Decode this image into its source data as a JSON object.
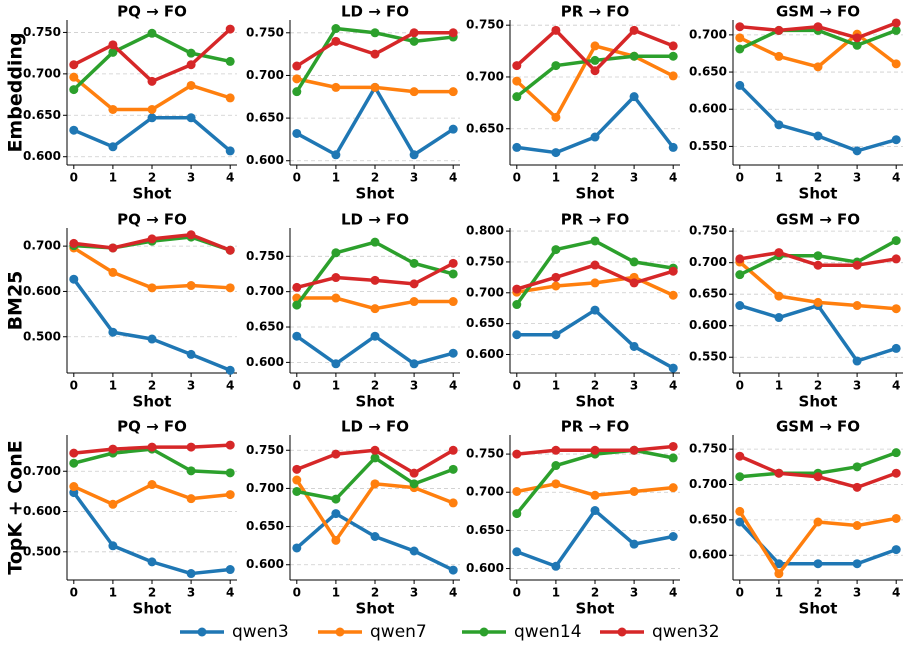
{
  "chart_data": [
    {
      "type": "line",
      "title": "PQ → FO",
      "ylabel": "Embedding",
      "xlabel": "Shot",
      "categories": [
        "0",
        "1",
        "2",
        "3",
        "4"
      ],
      "ylim": [
        0.59,
        0.765
      ],
      "yticks": [
        {
          "value": 0.6,
          "label": "0.600"
        },
        {
          "value": 0.65,
          "label": "0.650"
        },
        {
          "value": 0.7,
          "label": "0.700"
        },
        {
          "value": 0.75,
          "label": "0.750"
        }
      ],
      "grid": true,
      "legend": "bottom",
      "series": [
        {
          "name": "qwen3",
          "color": "#1f77b4",
          "values": [
            0.632,
            0.612,
            0.647,
            0.647,
            0.607
          ]
        },
        {
          "name": "qwen7",
          "color": "#ff7f0e",
          "values": [
            0.696,
            0.657,
            0.657,
            0.686,
            0.671
          ]
        },
        {
          "name": "qwen14",
          "color": "#2ca02c",
          "values": [
            0.681,
            0.726,
            0.749,
            0.725,
            0.715
          ]
        },
        {
          "name": "qwen32",
          "color": "#d62728",
          "values": [
            0.711,
            0.735,
            0.691,
            0.711,
            0.754
          ]
        }
      ]
    },
    {
      "type": "line",
      "title": "LD → FO",
      "xlabel": "Shot",
      "categories": [
        "0",
        "1",
        "2",
        "3",
        "4"
      ],
      "ylim": [
        0.595,
        0.765
      ],
      "yticks": [
        {
          "value": 0.6,
          "label": "0.600"
        },
        {
          "value": 0.65,
          "label": "0.650"
        },
        {
          "value": 0.7,
          "label": "0.700"
        },
        {
          "value": 0.75,
          "label": "0.750"
        }
      ],
      "grid": true,
      "series": [
        {
          "name": "qwen3",
          "color": "#1f77b4",
          "values": [
            0.632,
            0.607,
            0.686,
            0.607,
            0.637
          ]
        },
        {
          "name": "qwen7",
          "color": "#ff7f0e",
          "values": [
            0.696,
            0.686,
            0.686,
            0.681,
            0.681
          ]
        },
        {
          "name": "qwen14",
          "color": "#2ca02c",
          "values": [
            0.681,
            0.755,
            0.75,
            0.74,
            0.745
          ]
        },
        {
          "name": "qwen32",
          "color": "#d62728",
          "values": [
            0.711,
            0.74,
            0.725,
            0.75,
            0.75
          ]
        }
      ]
    },
    {
      "type": "line",
      "title": "PR → FO",
      "xlabel": "Shot",
      "categories": [
        "0",
        "1",
        "2",
        "3",
        "4"
      ],
      "ylim": [
        0.615,
        0.755
      ],
      "yticks": [
        {
          "value": 0.65,
          "label": "0.650"
        },
        {
          "value": 0.7,
          "label": "0.700"
        },
        {
          "value": 0.75,
          "label": "0.750"
        }
      ],
      "grid": true,
      "series": [
        {
          "name": "qwen3",
          "color": "#1f77b4",
          "values": [
            0.632,
            0.627,
            0.642,
            0.681,
            0.632
          ]
        },
        {
          "name": "qwen7",
          "color": "#ff7f0e",
          "values": [
            0.696,
            0.661,
            0.73,
            0.72,
            0.701
          ]
        },
        {
          "name": "qwen14",
          "color": "#2ca02c",
          "values": [
            0.681,
            0.711,
            0.716,
            0.72,
            0.72
          ]
        },
        {
          "name": "qwen32",
          "color": "#d62728",
          "values": [
            0.711,
            0.745,
            0.706,
            0.745,
            0.73
          ]
        }
      ]
    },
    {
      "type": "line",
      "title": "GSM → FO",
      "xlabel": "Shot",
      "categories": [
        "0",
        "1",
        "2",
        "3",
        "4"
      ],
      "ylim": [
        0.525,
        0.72
      ],
      "yticks": [
        {
          "value": 0.55,
          "label": "0.550"
        },
        {
          "value": 0.6,
          "label": "0.600"
        },
        {
          "value": 0.65,
          "label": "0.650"
        },
        {
          "value": 0.7,
          "label": "0.700"
        }
      ],
      "grid": true,
      "series": [
        {
          "name": "qwen3",
          "color": "#1f77b4",
          "values": [
            0.632,
            0.579,
            0.564,
            0.544,
            0.559
          ]
        },
        {
          "name": "qwen7",
          "color": "#ff7f0e",
          "values": [
            0.696,
            0.671,
            0.657,
            0.701,
            0.661
          ]
        },
        {
          "name": "qwen14",
          "color": "#2ca02c",
          "values": [
            0.681,
            0.706,
            0.706,
            0.686,
            0.706
          ]
        },
        {
          "name": "qwen32",
          "color": "#d62728",
          "values": [
            0.711,
            0.706,
            0.711,
            0.696,
            0.716
          ]
        }
      ]
    },
    {
      "type": "line",
      "title": "PQ → FO",
      "ylabel": "BM25",
      "xlabel": "Shot",
      "categories": [
        "0",
        "1",
        "2",
        "3",
        "4"
      ],
      "ylim": [
        0.42,
        0.74
      ],
      "yticks": [
        {
          "value": 0.5,
          "label": "0.500"
        },
        {
          "value": 0.6,
          "label": "0.600"
        },
        {
          "value": 0.7,
          "label": "0.700"
        }
      ],
      "grid": true,
      "series": [
        {
          "name": "qwen3",
          "color": "#1f77b4",
          "values": [
            0.627,
            0.51,
            0.495,
            0.461,
            0.426
          ]
        },
        {
          "name": "qwen7",
          "color": "#ff7f0e",
          "values": [
            0.696,
            0.642,
            0.608,
            0.613,
            0.608
          ]
        },
        {
          "name": "qwen14",
          "color": "#2ca02c",
          "values": [
            0.701,
            0.696,
            0.711,
            0.72,
            0.691
          ]
        },
        {
          "name": "qwen32",
          "color": "#d62728",
          "values": [
            0.706,
            0.696,
            0.716,
            0.725,
            0.691
          ]
        }
      ]
    },
    {
      "type": "line",
      "title": "LD → FO",
      "xlabel": "Shot",
      "categories": [
        "0",
        "1",
        "2",
        "3",
        "4"
      ],
      "ylim": [
        0.585,
        0.79
      ],
      "yticks": [
        {
          "value": 0.6,
          "label": "0.600"
        },
        {
          "value": 0.65,
          "label": "0.650"
        },
        {
          "value": 0.7,
          "label": "0.700"
        },
        {
          "value": 0.75,
          "label": "0.750"
        }
      ],
      "grid": true,
      "series": [
        {
          "name": "qwen3",
          "color": "#1f77b4",
          "values": [
            0.637,
            0.598,
            0.637,
            0.598,
            0.613
          ]
        },
        {
          "name": "qwen7",
          "color": "#ff7f0e",
          "values": [
            0.691,
            0.691,
            0.676,
            0.686,
            0.686
          ]
        },
        {
          "name": "qwen14",
          "color": "#2ca02c",
          "values": [
            0.681,
            0.755,
            0.77,
            0.74,
            0.725
          ]
        },
        {
          "name": "qwen32",
          "color": "#d62728",
          "values": [
            0.706,
            0.72,
            0.716,
            0.711,
            0.74
          ]
        }
      ]
    },
    {
      "type": "line",
      "title": "PR → FO",
      "xlabel": "Shot",
      "categories": [
        "0",
        "1",
        "2",
        "3",
        "4"
      ],
      "ylim": [
        0.57,
        0.805
      ],
      "yticks": [
        {
          "value": 0.6,
          "label": "0.600"
        },
        {
          "value": 0.65,
          "label": "0.650"
        },
        {
          "value": 0.7,
          "label": "0.700"
        },
        {
          "value": 0.75,
          "label": "0.750"
        },
        {
          "value": 0.8,
          "label": "0.800"
        }
      ],
      "grid": true,
      "series": [
        {
          "name": "qwen3",
          "color": "#1f77b4",
          "values": [
            0.632,
            0.632,
            0.672,
            0.613,
            0.578
          ]
        },
        {
          "name": "qwen7",
          "color": "#ff7f0e",
          "values": [
            0.701,
            0.711,
            0.716,
            0.725,
            0.696
          ]
        },
        {
          "name": "qwen14",
          "color": "#2ca02c",
          "values": [
            0.681,
            0.77,
            0.784,
            0.75,
            0.74
          ]
        },
        {
          "name": "qwen32",
          "color": "#d62728",
          "values": [
            0.706,
            0.725,
            0.745,
            0.716,
            0.735
          ]
        }
      ]
    },
    {
      "type": "line",
      "title": "GSM → FO",
      "xlabel": "Shot",
      "categories": [
        "0",
        "1",
        "2",
        "3",
        "4"
      ],
      "ylim": [
        0.525,
        0.755
      ],
      "yticks": [
        {
          "value": 0.55,
          "label": "0.550"
        },
        {
          "value": 0.6,
          "label": "0.600"
        },
        {
          "value": 0.65,
          "label": "0.650"
        },
        {
          "value": 0.7,
          "label": "0.700"
        },
        {
          "value": 0.75,
          "label": "0.750"
        }
      ],
      "grid": true,
      "series": [
        {
          "name": "qwen3",
          "color": "#1f77b4",
          "values": [
            0.632,
            0.613,
            0.632,
            0.544,
            0.564
          ]
        },
        {
          "name": "qwen7",
          "color": "#ff7f0e",
          "values": [
            0.701,
            0.647,
            0.637,
            0.632,
            0.627
          ]
        },
        {
          "name": "qwen14",
          "color": "#2ca02c",
          "values": [
            0.681,
            0.711,
            0.711,
            0.701,
            0.735
          ]
        },
        {
          "name": "qwen32",
          "color": "#d62728",
          "values": [
            0.706,
            0.716,
            0.696,
            0.696,
            0.706
          ]
        }
      ]
    },
    {
      "type": "line",
      "title": "PQ → FO",
      "ylabel": "TopK + ConE",
      "xlabel": "Shot",
      "categories": [
        "0",
        "1",
        "2",
        "3",
        "4"
      ],
      "ylim": [
        0.43,
        0.79
      ],
      "yticks": [
        {
          "value": 0.5,
          "label": "0.500"
        },
        {
          "value": 0.6,
          "label": "0.600"
        },
        {
          "value": 0.7,
          "label": "0.700"
        }
      ],
      "grid": true,
      "series": [
        {
          "name": "qwen3",
          "color": "#1f77b4",
          "values": [
            0.647,
            0.515,
            0.475,
            0.446,
            0.456
          ]
        },
        {
          "name": "qwen7",
          "color": "#ff7f0e",
          "values": [
            0.662,
            0.618,
            0.667,
            0.632,
            0.642
          ]
        },
        {
          "name": "qwen14",
          "color": "#2ca02c",
          "values": [
            0.72,
            0.745,
            0.755,
            0.701,
            0.696
          ]
        },
        {
          "name": "qwen32",
          "color": "#d62728",
          "values": [
            0.745,
            0.755,
            0.76,
            0.76,
            0.765
          ]
        }
      ]
    },
    {
      "type": "line",
      "title": "LD → FO",
      "xlabel": "Shot",
      "categories": [
        "0",
        "1",
        "2",
        "3",
        "4"
      ],
      "ylim": [
        0.58,
        0.77
      ],
      "yticks": [
        {
          "value": 0.6,
          "label": "0.600"
        },
        {
          "value": 0.65,
          "label": "0.650"
        },
        {
          "value": 0.7,
          "label": "0.700"
        },
        {
          "value": 0.75,
          "label": "0.750"
        }
      ],
      "grid": true,
      "series": [
        {
          "name": "qwen3",
          "color": "#1f77b4",
          "values": [
            0.622,
            0.667,
            0.637,
            0.618,
            0.593
          ]
        },
        {
          "name": "qwen7",
          "color": "#ff7f0e",
          "values": [
            0.711,
            0.632,
            0.706,
            0.701,
            0.681
          ]
        },
        {
          "name": "qwen14",
          "color": "#2ca02c",
          "values": [
            0.696,
            0.686,
            0.74,
            0.706,
            0.725
          ]
        },
        {
          "name": "qwen32",
          "color": "#d62728",
          "values": [
            0.725,
            0.745,
            0.75,
            0.72,
            0.75
          ]
        }
      ]
    },
    {
      "type": "line",
      "title": "PR → FO",
      "xlabel": "Shot",
      "categories": [
        "0",
        "1",
        "2",
        "3",
        "4"
      ],
      "ylim": [
        0.585,
        0.775
      ],
      "yticks": [
        {
          "value": 0.6,
          "label": "0.600"
        },
        {
          "value": 0.65,
          "label": "0.650"
        },
        {
          "value": 0.7,
          "label": "0.700"
        },
        {
          "value": 0.75,
          "label": "0.750"
        }
      ],
      "grid": true,
      "series": [
        {
          "name": "qwen3",
          "color": "#1f77b4",
          "values": [
            0.622,
            0.603,
            0.676,
            0.632,
            0.642
          ]
        },
        {
          "name": "qwen7",
          "color": "#ff7f0e",
          "values": [
            0.701,
            0.711,
            0.696,
            0.701,
            0.706
          ]
        },
        {
          "name": "qwen14",
          "color": "#2ca02c",
          "values": [
            0.672,
            0.735,
            0.75,
            0.755,
            0.745
          ]
        },
        {
          "name": "qwen32",
          "color": "#d62728",
          "values": [
            0.75,
            0.755,
            0.755,
            0.755,
            0.76
          ]
        }
      ]
    },
    {
      "type": "line",
      "title": "GSM → FO",
      "xlabel": "Shot",
      "categories": [
        "0",
        "1",
        "2",
        "3",
        "4"
      ],
      "ylim": [
        0.565,
        0.77
      ],
      "yticks": [
        {
          "value": 0.6,
          "label": "0.600"
        },
        {
          "value": 0.65,
          "label": "0.650"
        },
        {
          "value": 0.7,
          "label": "0.700"
        },
        {
          "value": 0.75,
          "label": "0.750"
        }
      ],
      "grid": true,
      "series": [
        {
          "name": "qwen3",
          "color": "#1f77b4",
          "values": [
            0.647,
            0.588,
            0.588,
            0.588,
            0.608
          ]
        },
        {
          "name": "qwen7",
          "color": "#ff7f0e",
          "values": [
            0.662,
            0.574,
            0.647,
            0.642,
            0.652
          ]
        },
        {
          "name": "qwen14",
          "color": "#2ca02c",
          "values": [
            0.711,
            0.716,
            0.716,
            0.725,
            0.745
          ]
        },
        {
          "name": "qwen32",
          "color": "#d62728",
          "values": [
            0.74,
            0.716,
            0.711,
            0.696,
            0.716
          ]
        }
      ]
    }
  ]
}
